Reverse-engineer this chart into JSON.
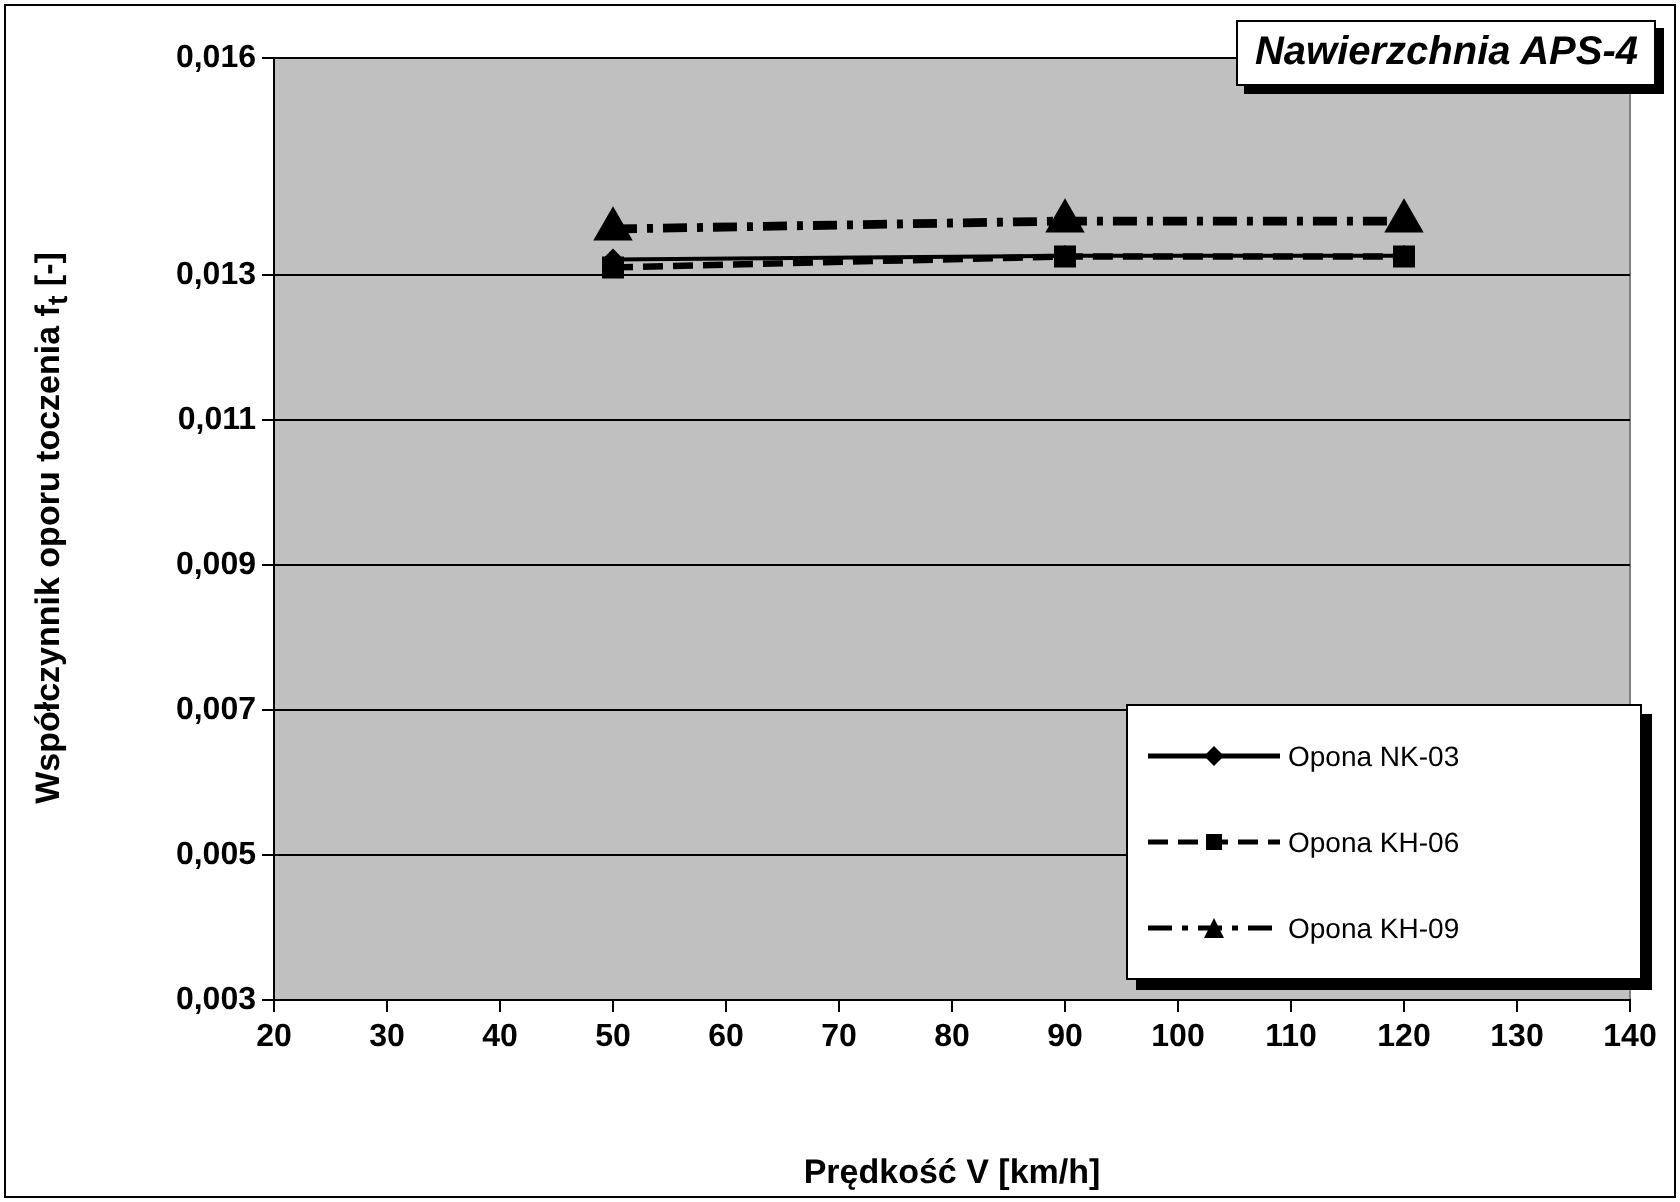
{
  "chart_data": {
    "type": "line",
    "title": "Nawierzchnia APS-4",
    "xlabel": "Prędkość V [km/h]",
    "ylabel": "Współczynnik oporu toczenia f$_{t}$  [-]",
    "x": [
      50,
      90,
      120
    ],
    "series": [
      {
        "name": "Opona NK-03",
        "color": "#000000",
        "values": [
          0.01322,
          0.01327,
          0.01327
        ],
        "marker": "diamond",
        "line_style": "solid"
      },
      {
        "name": "Opona KH-06",
        "color": "#000000",
        "values": [
          0.01311,
          0.01326,
          0.01326
        ],
        "marker": "square",
        "line_style": "dashed"
      },
      {
        "name": "Opona KH-09",
        "color": "#000000",
        "values": [
          0.01364,
          0.01375,
          0.01375
        ],
        "marker": "triangle",
        "line_style": "dashdot"
      }
    ],
    "xlim": [
      20,
      140
    ],
    "xticks": [
      20,
      30,
      40,
      50,
      60,
      70,
      80,
      90,
      100,
      110,
      120,
      130,
      140
    ],
    "ylim": [
      0.003,
      0.016
    ],
    "yticks": [
      {
        "value": 0.003,
        "label": "0,003"
      },
      {
        "value": 0.005,
        "label": "0,005"
      },
      {
        "value": 0.007,
        "label": "0,007"
      },
      {
        "value": 0.009,
        "label": "0,009"
      },
      {
        "value": 0.011,
        "label": "0,011"
      },
      {
        "value": 0.013,
        "label": "0,013"
      },
      {
        "value": 0.016,
        "label": "0,016"
      }
    ],
    "grid": "y",
    "legend": "bottom right"
  }
}
